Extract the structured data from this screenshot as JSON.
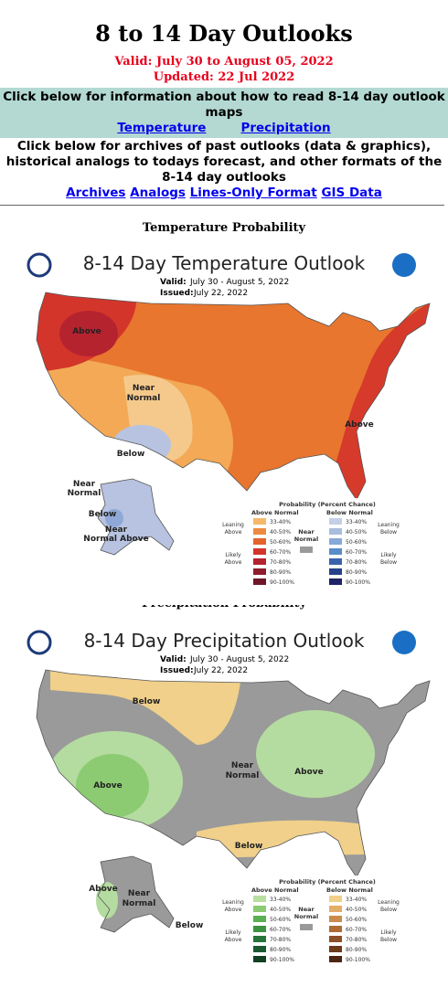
{
  "header": {
    "title": "8 to 14 Day Outlooks",
    "valid": "Valid: July 30 to August 05, 2022",
    "updated": "Updated: 22 Jul 2022"
  },
  "info": {
    "text": "Click below for information about how to read 8-14 day outlook maps",
    "links": [
      "Temperature",
      "Precipitation"
    ]
  },
  "archives": {
    "text": "Click below for archives of past outlooks (data & graphics), historical analogs to todays forecast, and other formats of the 8-14 day outlooks",
    "links": [
      "Archives",
      "Analogs",
      "Lines-Only Format",
      "GIS Data"
    ]
  },
  "maps": [
    {
      "section": "Temperature Probability",
      "title": "8-14 Day Temperature Outlook",
      "valid_label": "Valid:",
      "valid": "July 30 - August 5, 2022",
      "issued_label": "Issued:",
      "issued": "July 22, 2022",
      "regions": [
        "Above",
        "Near",
        "Normal",
        "Below",
        "Above",
        "Near",
        "Normal",
        "Below",
        "Near",
        "Normal Above"
      ],
      "legend": {
        "title": "Probability (Percent Chance)",
        "above_label": "Above Normal",
        "below_label": "Below Normal",
        "near_label": [
          "Near",
          "Normal"
        ],
        "above_bins": [
          "33-40%",
          "40-50%",
          "50-60%",
          "60-70%",
          "70-80%",
          "80-90%",
          "90-100%"
        ],
        "below_bins": [
          "33-40%",
          "40-50%",
          "50-60%",
          "60-70%",
          "70-80%",
          "80-90%",
          "90-100%"
        ],
        "above_colors": [
          "#f5b86b",
          "#ec8a43",
          "#e4632d",
          "#d3352b",
          "#b5232f",
          "#8e1d2c",
          "#6e1627"
        ],
        "below_colors": [
          "#c6cfe8",
          "#a9bde0",
          "#86a9d6",
          "#5b8cc8",
          "#3b63ad",
          "#26418a",
          "#1c2265"
        ],
        "leaning_above": [
          "Leaning",
          "Above"
        ],
        "likely_above": [
          "Likely",
          "Above"
        ],
        "leaning_below": [
          "Leaning",
          "Below"
        ],
        "likely_below": [
          "Likely",
          "Below"
        ]
      }
    },
    {
      "section": "Precipitation Probability",
      "title": "8-14 Day Precipitation Outlook",
      "valid_label": "Valid:",
      "valid": "July 30 - August 5, 2022",
      "issued_label": "Issued:",
      "issued": "July 22, 2022",
      "regions": [
        "Below",
        "Above",
        "Near",
        "Normal",
        "Above",
        "Below",
        "Above",
        "Near",
        "Normal",
        "Below"
      ],
      "legend": {
        "title": "Probability (Percent Chance)",
        "above_label": "Above Normal",
        "below_label": "Below Normal",
        "near_label": [
          "Near",
          "Normal"
        ],
        "above_bins": [
          "33-40%",
          "40-50%",
          "50-60%",
          "60-70%",
          "70-80%",
          "80-90%",
          "90-100%"
        ],
        "below_bins": [
          "33-40%",
          "40-50%",
          "50-60%",
          "60-70%",
          "70-80%",
          "80-90%",
          "90-100%"
        ],
        "above_colors": [
          "#b8df9f",
          "#8ccb72",
          "#5bb151",
          "#3d9440",
          "#28753a",
          "#1b5a30",
          "#114022"
        ],
        "below_colors": [
          "#f0d08a",
          "#e2ae68",
          "#c98c4a",
          "#ae6b36",
          "#8c4f26",
          "#6d3a1c",
          "#4c2512"
        ],
        "leaning_above": [
          "Leaning",
          "Above"
        ],
        "likely_above": [
          "Likely",
          "Above"
        ],
        "leaning_below": [
          "Leaning",
          "Below"
        ],
        "likely_below": [
          "Likely",
          "Below"
        ]
      }
    }
  ]
}
